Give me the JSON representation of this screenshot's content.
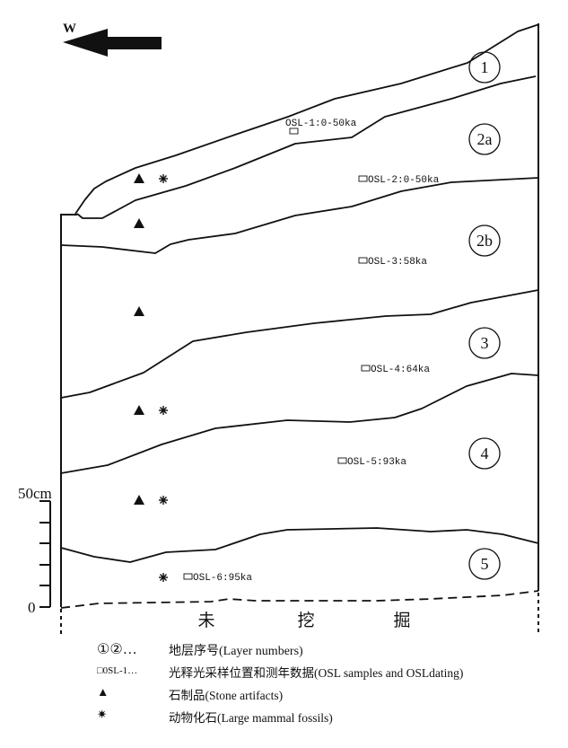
{
  "direction": {
    "label": "W",
    "icon": "arrow-left-icon"
  },
  "scale": {
    "top_label": "50cm",
    "bottom_label": "0"
  },
  "layers": [
    {
      "label": "1"
    },
    {
      "label": "2a"
    },
    {
      "label": "2b"
    },
    {
      "label": "3"
    },
    {
      "label": "4"
    },
    {
      "label": "5"
    }
  ],
  "osl_samples": [
    {
      "label": "OSL-1:0-50ka"
    },
    {
      "label": "OSL-2:0-50ka"
    },
    {
      "label": "OSL-3:58ka"
    },
    {
      "label": "OSL-4:64ka"
    },
    {
      "label": "OSL-5:93ka"
    },
    {
      "label": "OSL-6:95ka"
    }
  ],
  "unexcavated": [
    "未",
    "挖",
    "掘"
  ],
  "legend": [
    {
      "symbol": "①②…",
      "text": "地层序号(Layer numbers)"
    },
    {
      "symbol": "□0SL-1…",
      "text": "光释光采样位置和测年数据(OSL samples and OSLdating)"
    },
    {
      "symbol": "▲",
      "text": "石制品(Stone artifacts)"
    },
    {
      "symbol": "✷",
      "text": "动物化石(Large mammal fossils)"
    }
  ]
}
